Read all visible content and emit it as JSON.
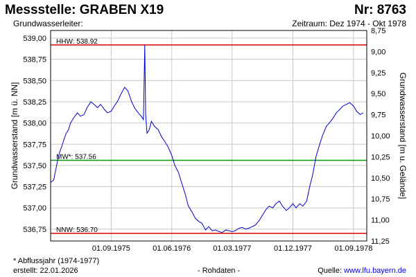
{
  "header": {
    "title": "Messstelle: GRABEN X19",
    "number": "Nr: 8763",
    "aquifer_label": "Grundwasserleiter:",
    "period": "Zeitraum: Dez 1974 - Okt 1978"
  },
  "footer": {
    "footnote": "* Abflussjahr (1974-1977)",
    "created": "erstellt:  22.01.2026",
    "raw": "- Rohdaten -",
    "source_prefix": "Quelle: ",
    "source_url": "www.lfu.bayern.de"
  },
  "colors": {
    "series": "#0000cc",
    "extreme": "#dd0000",
    "mean": "#009900",
    "grid": "#c8c8c8"
  },
  "chart_data": {
    "type": "line",
    "xlabel": "",
    "ylabel": "Grundwasserstand [m ü. NN]",
    "ylabel_right": "Grundwasserstand [m u. Gelände]",
    "xlim": [
      "1974-12-01",
      "1978-10-31"
    ],
    "ylim": [
      536.61,
      539.09
    ],
    "y_ticks": [
      "539,00",
      "538,75",
      "538,50",
      "538,25",
      "538,00",
      "537,75",
      "537,50",
      "537,25",
      "537,00",
      "536,75"
    ],
    "y_tick_values": [
      539.0,
      538.75,
      538.5,
      538.25,
      538.0,
      537.75,
      537.5,
      537.25,
      537.0,
      536.75
    ],
    "y2_ticks": [
      "8,75",
      "9,00",
      "9,25",
      "9,50",
      "9,75",
      "10,00",
      "10,25",
      "10,50",
      "10,75",
      "11,00",
      "11,25"
    ],
    "y2_tick_values": [
      8.75,
      9.0,
      9.25,
      9.5,
      9.75,
      10.0,
      10.25,
      10.5,
      10.75,
      11.0,
      11.25
    ],
    "x_ticks": [
      "01.09.1975",
      "01.06.1976",
      "01.03.1977",
      "01.12.1977",
      "01.09.1978"
    ],
    "x_tick_dates": [
      "1975-09-01",
      "1976-06-01",
      "1977-03-01",
      "1977-12-01",
      "1978-09-01"
    ],
    "reference_lines": [
      {
        "label": "HHW: 538.92",
        "value": 538.92,
        "kind": "extreme"
      },
      {
        "label": "MW*: 537.56",
        "value": 537.56,
        "kind": "mean"
      },
      {
        "label": "NNW: 536.70",
        "value": 536.7,
        "kind": "extreme"
      }
    ],
    "grid": true,
    "series": [
      {
        "points": [
          [
            "1974-12-01",
            537.3
          ],
          [
            "1974-12-15",
            537.33
          ],
          [
            "1975-01-01",
            537.55
          ],
          [
            "1975-01-10",
            537.65
          ],
          [
            "1975-01-20",
            537.72
          ],
          [
            "1975-02-01",
            537.82
          ],
          [
            "1975-02-10",
            537.88
          ],
          [
            "1975-02-20",
            537.92
          ],
          [
            "1975-03-01",
            538.0
          ],
          [
            "1975-03-15",
            538.06
          ],
          [
            "1975-04-01",
            538.12
          ],
          [
            "1975-04-15",
            538.08
          ],
          [
            "1975-05-01",
            538.1
          ],
          [
            "1975-05-15",
            538.18
          ],
          [
            "1975-06-01",
            538.25
          ],
          [
            "1975-06-15",
            538.22
          ],
          [
            "1975-07-01",
            538.18
          ],
          [
            "1975-07-15",
            538.22
          ],
          [
            "1975-08-01",
            538.16
          ],
          [
            "1975-08-15",
            538.12
          ],
          [
            "1975-09-01",
            538.14
          ],
          [
            "1975-09-15",
            538.2
          ],
          [
            "1975-10-01",
            538.26
          ],
          [
            "1975-10-15",
            538.34
          ],
          [
            "1975-11-01",
            538.42
          ],
          [
            "1975-11-15",
            538.38
          ],
          [
            "1975-12-01",
            538.26
          ],
          [
            "1975-12-15",
            538.18
          ],
          [
            "1976-01-01",
            538.12
          ],
          [
            "1976-01-15",
            538.08
          ],
          [
            "1976-01-25",
            538.04
          ],
          [
            "1976-01-31",
            538.92
          ],
          [
            "1976-02-04",
            538.1
          ],
          [
            "1976-02-10",
            537.88
          ],
          [
            "1976-02-20",
            537.92
          ],
          [
            "1976-03-01",
            538.02
          ],
          [
            "1976-03-15",
            537.96
          ],
          [
            "1976-04-01",
            537.92
          ],
          [
            "1976-04-15",
            537.84
          ],
          [
            "1976-05-01",
            537.78
          ],
          [
            "1976-05-15",
            537.72
          ],
          [
            "1976-06-01",
            537.62
          ],
          [
            "1976-06-15",
            537.5
          ],
          [
            "1976-07-01",
            537.42
          ],
          [
            "1976-07-15",
            537.3
          ],
          [
            "1976-08-01",
            537.16
          ],
          [
            "1976-08-15",
            537.02
          ],
          [
            "1976-09-01",
            536.95
          ],
          [
            "1976-09-15",
            536.88
          ],
          [
            "1976-10-01",
            536.84
          ],
          [
            "1976-10-15",
            536.82
          ],
          [
            "1976-11-01",
            536.74
          ],
          [
            "1976-11-15",
            536.78
          ],
          [
            "1976-12-01",
            536.73
          ],
          [
            "1976-12-15",
            536.74
          ],
          [
            "1977-01-01",
            536.72
          ],
          [
            "1977-01-15",
            536.71
          ],
          [
            "1977-02-01",
            536.74
          ],
          [
            "1977-02-15",
            536.73
          ],
          [
            "1977-03-01",
            536.72
          ],
          [
            "1977-03-15",
            536.73
          ],
          [
            "1977-04-01",
            536.76
          ],
          [
            "1977-04-15",
            536.77
          ],
          [
            "1977-05-01",
            536.75
          ],
          [
            "1977-05-15",
            536.76
          ],
          [
            "1977-06-01",
            536.78
          ],
          [
            "1977-06-15",
            536.8
          ],
          [
            "1977-07-01",
            536.85
          ],
          [
            "1977-07-15",
            536.91
          ],
          [
            "1977-08-01",
            536.98
          ],
          [
            "1977-08-15",
            537.02
          ],
          [
            "1977-09-01",
            537.0
          ],
          [
            "1977-09-15",
            537.05
          ],
          [
            "1977-10-01",
            537.08
          ],
          [
            "1977-10-15",
            537.02
          ],
          [
            "1977-11-01",
            536.97
          ],
          [
            "1977-11-15",
            537.0
          ],
          [
            "1977-12-01",
            537.05
          ],
          [
            "1977-12-15",
            537.0
          ],
          [
            "1978-01-01",
            537.05
          ],
          [
            "1978-01-15",
            537.02
          ],
          [
            "1978-02-01",
            537.08
          ],
          [
            "1978-02-15",
            537.25
          ],
          [
            "1978-03-01",
            537.4
          ],
          [
            "1978-03-15",
            537.6
          ],
          [
            "1978-04-01",
            537.75
          ],
          [
            "1978-04-15",
            537.86
          ],
          [
            "1978-05-01",
            537.96
          ],
          [
            "1978-05-15",
            538.0
          ],
          [
            "1978-06-01",
            538.06
          ],
          [
            "1978-06-15",
            538.12
          ],
          [
            "1978-07-01",
            538.16
          ],
          [
            "1978-07-15",
            538.2
          ],
          [
            "1978-08-01",
            538.22
          ],
          [
            "1978-08-15",
            538.24
          ],
          [
            "1978-09-01",
            538.2
          ],
          [
            "1978-09-15",
            538.14
          ],
          [
            "1978-10-01",
            538.1
          ],
          [
            "1978-10-15",
            538.12
          ]
        ]
      }
    ]
  }
}
